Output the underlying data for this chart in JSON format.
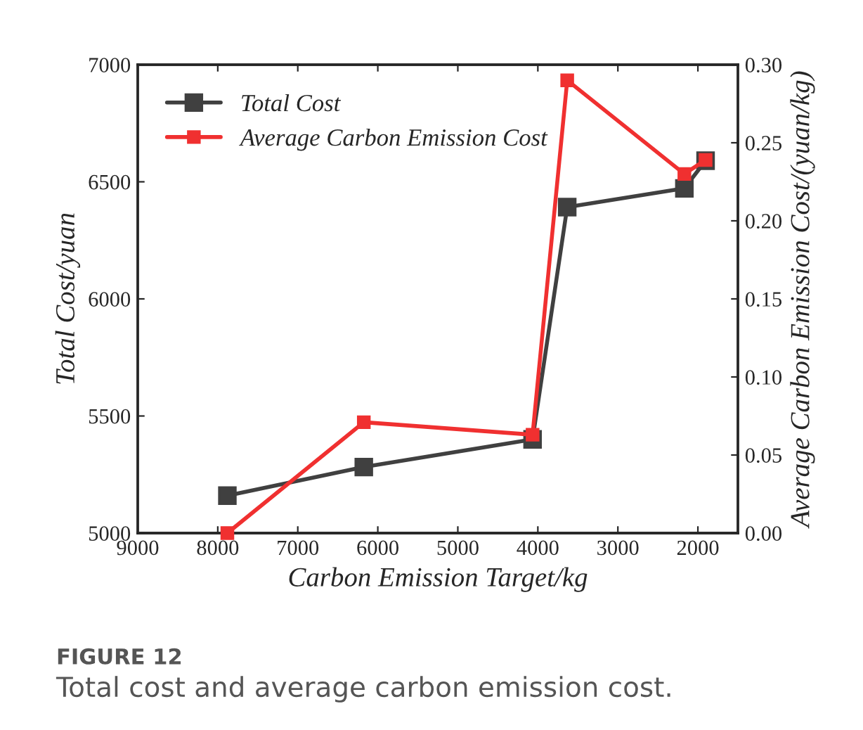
{
  "chart_data": {
    "type": "line",
    "xlabel": "Carbon Emission Target/kg",
    "ylabel": "Total Cost/yuan",
    "y2label": "Average Carbon Emission Cost/(yuan/kg)",
    "x": [
      7880,
      6175,
      4066,
      3633,
      2169,
      1904
    ],
    "series": [
      {
        "name": "Total Cost",
        "color": "#404040",
        "values": [
          5160,
          5282,
          5400,
          6392,
          6472,
          6590
        ]
      },
      {
        "name": "Average Carbon Emission Cost",
        "color": "#f03030",
        "axis": "y2",
        "values": [
          0.0,
          0.071,
          0.063,
          0.29,
          0.23,
          0.239
        ]
      }
    ],
    "xlim": [
      9000,
      1500
    ],
    "xticks": [
      9000,
      8000,
      7000,
      6000,
      5000,
      4000,
      3000,
      2000
    ],
    "ylim": [
      5000,
      7000
    ],
    "yticks": [
      5000,
      5500,
      6000,
      6500,
      7000
    ],
    "y2lim": [
      0,
      0.3
    ],
    "y2ticks": [
      {
        "value": 0,
        "label": "0.00"
      },
      {
        "value": 0.05,
        "label": "0.05"
      },
      {
        "value": 0.1,
        "label": "0.10"
      },
      {
        "value": 0.15,
        "label": "0.15"
      },
      {
        "value": 0.2,
        "label": "0.20"
      },
      {
        "value": 0.25,
        "label": "0.25"
      },
      {
        "value": 0.3,
        "label": "0.30"
      }
    ],
    "marker": "square",
    "line_style": "solid",
    "grid": false,
    "legend": "top left",
    "annotations": [
      "FIGURE 12",
      "Total cost and average carbon emission cost."
    ]
  }
}
